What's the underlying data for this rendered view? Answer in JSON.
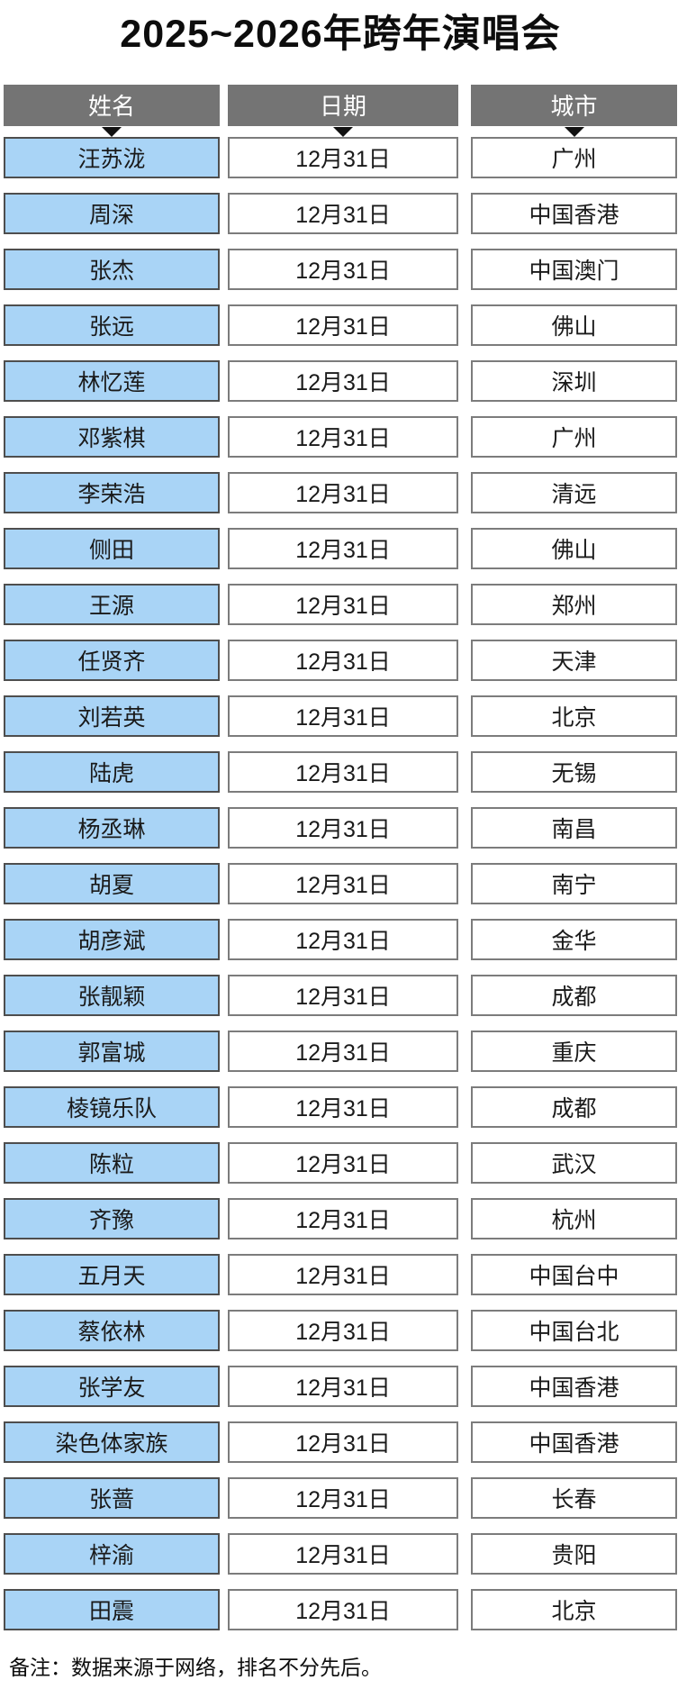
{
  "chart_data": {
    "type": "table",
    "title": "2025~2026年跨年演唱会",
    "columns": [
      "姓名",
      "日期",
      "城市"
    ],
    "rows": [
      [
        "汪苏泷",
        "12月31日",
        "广州"
      ],
      [
        "周深",
        "12月31日",
        "中国香港"
      ],
      [
        "张杰",
        "12月31日",
        "中国澳门"
      ],
      [
        "张远",
        "12月31日",
        "佛山"
      ],
      [
        "林忆莲",
        "12月31日",
        "深圳"
      ],
      [
        "邓紫棋",
        "12月31日",
        "广州"
      ],
      [
        "李荣浩",
        "12月31日",
        "清远"
      ],
      [
        "侧田",
        "12月31日",
        "佛山"
      ],
      [
        "王源",
        "12月31日",
        "郑州"
      ],
      [
        "任贤齐",
        "12月31日",
        "天津"
      ],
      [
        "刘若英",
        "12月31日",
        "北京"
      ],
      [
        "陆虎",
        "12月31日",
        "无锡"
      ],
      [
        "杨丞琳",
        "12月31日",
        "南昌"
      ],
      [
        "胡夏",
        "12月31日",
        "南宁"
      ],
      [
        "胡彦斌",
        "12月31日",
        "金华"
      ],
      [
        "张靓颖",
        "12月31日",
        "成都"
      ],
      [
        "郭富城",
        "12月31日",
        "重庆"
      ],
      [
        "棱镜乐队",
        "12月31日",
        "成都"
      ],
      [
        "陈粒",
        "12月31日",
        "武汉"
      ],
      [
        "齐豫",
        "12月31日",
        "杭州"
      ],
      [
        "五月天",
        "12月31日",
        "中国台中"
      ],
      [
        "蔡依林",
        "12月31日",
        "中国台北"
      ],
      [
        "张学友",
        "12月31日",
        "中国香港"
      ],
      [
        "染色体家族",
        "12月31日",
        "中国香港"
      ],
      [
        "张蔷",
        "12月31日",
        "长春"
      ],
      [
        "梓渝",
        "12月31日",
        "贵阳"
      ],
      [
        "田震",
        "12月31日",
        "北京"
      ]
    ]
  },
  "footer": {
    "note": "备注：数据来源于网络，排名不分先后。"
  },
  "colors": {
    "header_bg": "#747474",
    "header_text": "#ffffff",
    "name_cell_bg": "#A9D4F6",
    "name_cell_border": "#4E4E4E",
    "value_cell_bg": "#ffffff",
    "value_cell_border": "#7C7C7C",
    "text": "#1A1A1A",
    "arrow": "#111111"
  }
}
